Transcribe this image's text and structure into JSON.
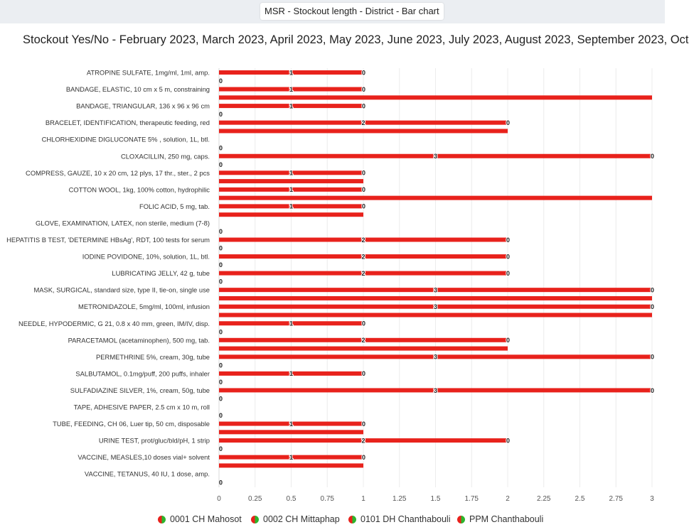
{
  "tab": {
    "title": "MSR - Stockout length - District - Bar chart"
  },
  "chart_data": {
    "type": "bar",
    "orientation": "horizontal",
    "title": "Stockout Yes/No - February 2023, March 2023, April 2023, May 2023, June 2023, July 2023, August 2023, September 2023, Oct",
    "categories": [
      "ATROPINE SULFATE, 1mg/ml, 1ml, amp.",
      "BANDAGE, ELASTIC, 10 cm x 5 m, constraining",
      "BANDAGE, TRIANGULAR, 136 x 96 x 96 cm",
      "BRACELET, IDENTIFICATION, therapeutic feeding, red",
      "CHLORHEXIDINE DIGLUCONATE 5% , solution, 1L, btl.",
      "CLOXACILLIN, 250 mg, caps.",
      "COMPRESS, GAUZE, 10 x 20 cm, 12 plys, 17 thr., ster., 2 pcs",
      "COTTON WOOL, 1kg, 100% cotton, hydrophilic",
      "FOLIC ACID, 5 mg, tab.",
      "GLOVE, EXAMINATION, LATEX, non sterile, medium (7-8)",
      "HEPATITIS B TEST, 'DETERMINE HBsAg', RDT, 100 tests for serum",
      "IODINE POVIDONE, 10%, solution, 1L, btl.",
      "LUBRICATING JELLY, 42 g, tube",
      "MASK, SURGICAL, standard size, type II, tie-on, single use",
      "METRONIDAZOLE, 5mg/ml, 100ml, infusion",
      "NEEDLE, HYPODERMIC, G 21, 0.8 x 40 mm, green, IM/IV, disp.",
      "PARACETAMOL (acetaminophen), 500 mg, tab.",
      "PERMETHRINE 5%, cream, 30g, tube",
      "SALBUTAMOL, 0.1mg/puff, 200 puffs, inhaler",
      "SULFADIAZINE SILVER, 1%, cream, 50g, tube",
      "TAPE, ADHESIVE PAPER, 2.5 cm x 10 m, roll",
      "TUBE, FEEDING, CH 06, Luer tip, 50 cm, disposable",
      "URINE TEST, prot/gluc/bld/pH, 1 strip",
      "VACCINE, MEASLES,10 doses vial+ solvent",
      "VACCINE, TETANUS, 40 IU, 1 dose, amp."
    ],
    "series": [
      {
        "name": "0001 CH Mahosot",
        "values": [
          null,
          null,
          null,
          null,
          null,
          null,
          null,
          null,
          null,
          null,
          null,
          null,
          null,
          null,
          null,
          null,
          null,
          null,
          null,
          null,
          null,
          null,
          null,
          null,
          null
        ]
      },
      {
        "name": "0002 CH Mittaphap",
        "values": [
          null,
          null,
          null,
          null,
          null,
          null,
          null,
          null,
          null,
          null,
          null,
          null,
          null,
          null,
          null,
          null,
          null,
          null,
          null,
          null,
          null,
          null,
          null,
          null,
          null
        ]
      },
      {
        "name": "0101 DH Chanthabouli",
        "values": [
          [
            1,
            0
          ],
          [
            1,
            0
          ],
          [
            1,
            0
          ],
          [
            2,
            0
          ],
          null,
          [
            3,
            0
          ],
          [
            1,
            0
          ],
          [
            1,
            0
          ],
          [
            1,
            0
          ],
          null,
          [
            2,
            0
          ],
          [
            2,
            0
          ],
          [
            2,
            0
          ],
          [
            3,
            0
          ],
          [
            3,
            0
          ],
          [
            1,
            0
          ],
          [
            2,
            0
          ],
          [
            3,
            0
          ],
          [
            1,
            0
          ],
          [
            3,
            0
          ],
          null,
          [
            1,
            0
          ],
          [
            2,
            0
          ],
          [
            1,
            0
          ],
          null
        ]
      },
      {
        "name": "PPM Chanthabouli",
        "values": [
          0,
          3,
          0,
          2,
          0,
          0,
          1,
          3,
          1,
          0,
          0,
          0,
          0,
          3,
          3,
          0,
          2,
          0,
          0,
          0,
          0,
          1,
          0,
          1,
          0
        ]
      }
    ],
    "xlim": [
      0,
      3
    ],
    "xticks": [
      0,
      0.25,
      0.5,
      0.75,
      1,
      1.25,
      1.5,
      1.75,
      2,
      2.25,
      2.5,
      2.75,
      3
    ],
    "grid": true,
    "legend_position": "bottom",
    "bar_color": "#e8221c",
    "legend_colors": [
      "#e8221c",
      "#2cb52c"
    ]
  }
}
